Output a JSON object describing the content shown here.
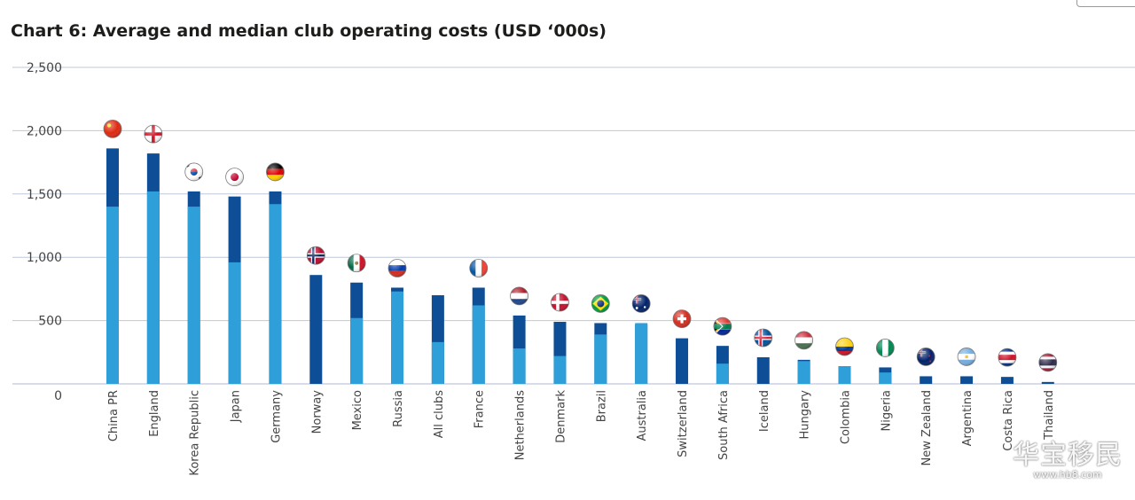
{
  "chart_data": {
    "type": "bar",
    "title": "Chart 6: Average and median club operating costs (USD ‘000s)",
    "xlabel": "",
    "ylabel": "",
    "ylim": [
      0,
      2500
    ],
    "yticks": [
      "2,500",
      "2,000",
      "1,500",
      "1,000",
      "500",
      "0"
    ],
    "ytick_values": [
      2500,
      2000,
      1500,
      1000,
      500,
      0
    ],
    "grid": true,
    "legend": "none",
    "categories": [
      "China PR",
      "England",
      "Korea Republic",
      "Japan",
      "Germany",
      "Norway",
      "Mexico",
      "Russia",
      "All clubs",
      "France",
      "Netherlands",
      "Denmark",
      "Brazil",
      "Australia",
      "Switzerland",
      "South Africa",
      "Iceland",
      "Hungary",
      "Colombia",
      "Nigeria",
      "New Zealand",
      "Argentina",
      "Costa Rica",
      "Thailand"
    ],
    "series": [
      {
        "values": [
          1860,
          1820,
          1520,
          1480,
          1520,
          860,
          800,
          760,
          700,
          760,
          540,
          490,
          480,
          470,
          360,
          300,
          210,
          190,
          140,
          130,
          60,
          60,
          55,
          15
        ]
      },
      {
        "values": [
          1400,
          1520,
          1400,
          960,
          1420,
          0,
          520,
          730,
          330,
          620,
          280,
          220,
          390,
          480,
          0,
          160,
          0,
          180,
          140,
          90,
          0,
          0,
          0,
          0
        ]
      }
    ],
    "colors": {
      "dark": "#0e4e96",
      "light": "#2e9fd8",
      "grid": "#bfc8da",
      "axis_text": "#444444"
    },
    "flag_icons": [
      "china-flag-icon",
      "england-flag-icon",
      "korea-flag-icon",
      "japan-flag-icon",
      "germany-flag-icon",
      "norway-flag-icon",
      "mexico-flag-icon",
      "russia-flag-icon",
      "",
      "france-flag-icon",
      "netherlands-flag-icon",
      "denmark-flag-icon",
      "brazil-flag-icon",
      "australia-flag-icon",
      "switzerland-flag-icon",
      "south-africa-flag-icon",
      "iceland-flag-icon",
      "hungary-flag-icon",
      "colombia-flag-icon",
      "nigeria-flag-icon",
      "new-zealand-flag-icon",
      "argentina-flag-icon",
      "costa-rica-flag-icon",
      "thailand-flag-icon"
    ]
  },
  "watermark": {
    "main": "华宝移民",
    "sub": "www.hb8.com"
  }
}
